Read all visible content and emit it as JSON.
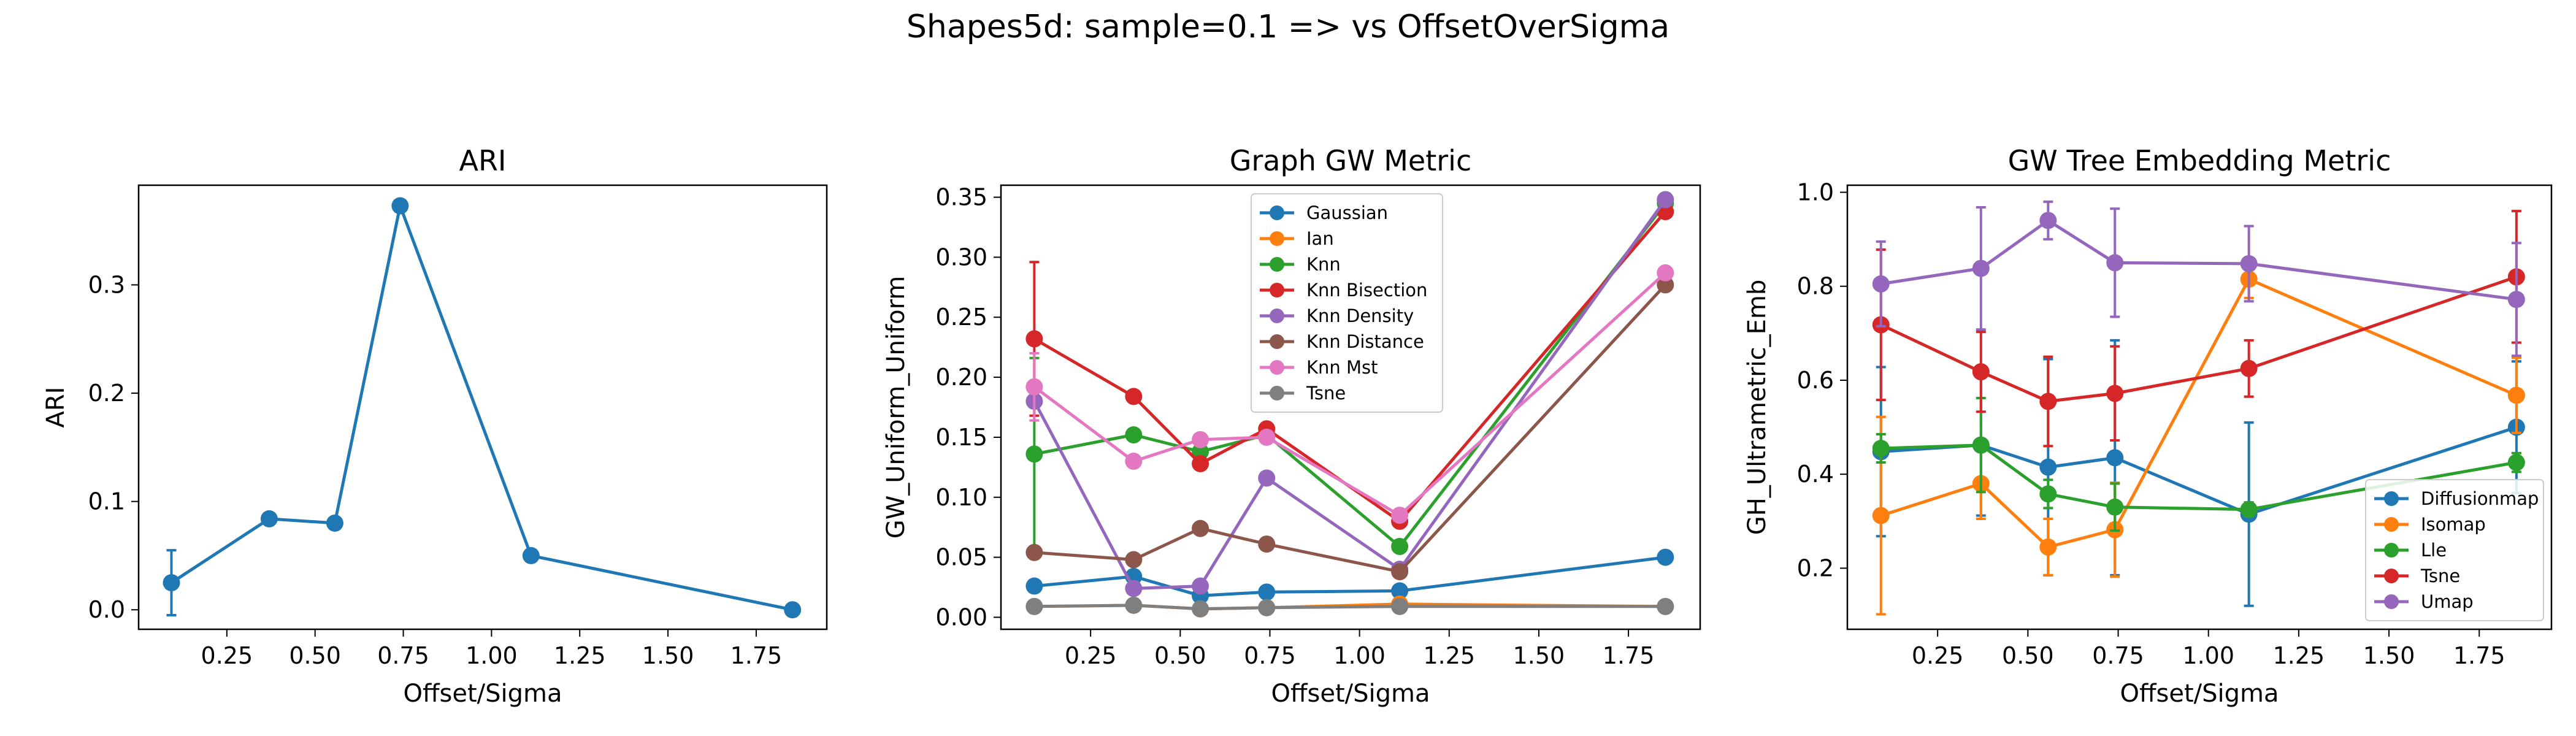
{
  "figure": {
    "suptitle": "Shapes5d: sample=0.1 => vs OffsetOverSigma"
  },
  "chart_data": [
    {
      "type": "line",
      "title": "ARI",
      "xlabel": "Offset/Sigma",
      "ylabel": "ARI",
      "xlim": [
        0.0,
        1.95
      ],
      "ylim": [
        -0.018,
        0.392
      ],
      "xticks": [
        0.25,
        0.5,
        0.75,
        1.0,
        1.25,
        1.5,
        1.75
      ],
      "xtick_labels": [
        "0.25",
        "0.50",
        "0.75",
        "1.00",
        "1.25",
        "1.50",
        "1.75"
      ],
      "yticks": [
        0.0,
        0.1,
        0.2,
        0.3
      ],
      "ytick_labels": [
        "0.0",
        "0.1",
        "0.2",
        "0.3"
      ],
      "legend": null,
      "series": [
        {
          "color": "#1f77b4",
          "x": [
            0.093,
            0.37,
            0.556,
            0.741,
            1.112,
            1.853
          ],
          "y": [
            0.025,
            0.084,
            0.08,
            0.373,
            0.05,
            0.0
          ],
          "err": [
            0.03,
            0,
            0,
            0,
            0,
            0
          ]
        }
      ]
    },
    {
      "type": "line",
      "title": "Graph GW Metric",
      "xlabel": "Offset/Sigma",
      "ylabel": "GW_Uniform_Uniform",
      "xlim": [
        0.0,
        1.95
      ],
      "ylim": [
        -0.01,
        0.36
      ],
      "xticks": [
        0.25,
        0.5,
        0.75,
        1.0,
        1.25,
        1.5,
        1.75
      ],
      "xtick_labels": [
        "0.25",
        "0.50",
        "0.75",
        "1.00",
        "1.25",
        "1.50",
        "1.75"
      ],
      "yticks": [
        0.0,
        0.05,
        0.1,
        0.15,
        0.2,
        0.25,
        0.3,
        0.35
      ],
      "ytick_labels": [
        "0.00",
        "0.05",
        "0.10",
        "0.15",
        "0.20",
        "0.25",
        "0.30",
        "0.35"
      ],
      "legend": "upper-center",
      "series": [
        {
          "name": "Gaussian",
          "color": "#1f77b4",
          "x": [
            0.093,
            0.37,
            0.556,
            0.741,
            1.112,
            1.853
          ],
          "y": [
            0.026,
            0.034,
            0.018,
            0.021,
            0.022,
            0.05
          ],
          "err": [
            0,
            0,
            0,
            0,
            0,
            0
          ]
        },
        {
          "name": "Ian",
          "color": "#ff7f0e",
          "x": [
            0.093,
            0.37,
            0.556,
            0.741,
            1.112,
            1.853
          ],
          "y": [
            0.009,
            0.01,
            0.007,
            0.008,
            0.011,
            0.009
          ],
          "err": [
            0,
            0,
            0,
            0,
            0,
            0
          ]
        },
        {
          "name": "Knn",
          "color": "#2ca02c",
          "x": [
            0.093,
            0.37,
            0.556,
            0.741,
            1.112,
            1.853
          ],
          "y": [
            0.136,
            0.152,
            0.138,
            0.152,
            0.059,
            0.345
          ],
          "err": [
            0.08,
            0,
            0,
            0,
            0,
            0
          ]
        },
        {
          "name": "Knn Bisection",
          "color": "#d62728",
          "x": [
            0.093,
            0.37,
            0.556,
            0.741,
            1.112,
            1.853
          ],
          "y": [
            0.232,
            0.184,
            0.128,
            0.157,
            0.08,
            0.338
          ],
          "err": [
            0.064,
            0,
            0,
            0,
            0,
            0
          ]
        },
        {
          "name": "Knn Density",
          "color": "#9467bd",
          "x": [
            0.093,
            0.37,
            0.556,
            0.741,
            1.112,
            1.853
          ],
          "y": [
            0.18,
            0.024,
            0.026,
            0.116,
            0.04,
            0.348
          ],
          "err": [
            0,
            0,
            0,
            0,
            0,
            0
          ]
        },
        {
          "name": "Knn Distance",
          "color": "#8c564b",
          "x": [
            0.093,
            0.37,
            0.556,
            0.741,
            1.112,
            1.853
          ],
          "y": [
            0.054,
            0.048,
            0.074,
            0.061,
            0.038,
            0.277
          ],
          "err": [
            0,
            0,
            0,
            0,
            0,
            0
          ]
        },
        {
          "name": "Knn Mst",
          "color": "#e377c2",
          "x": [
            0.093,
            0.37,
            0.556,
            0.741,
            1.112,
            1.853
          ],
          "y": [
            0.192,
            0.13,
            0.148,
            0.15,
            0.085,
            0.287
          ],
          "err": [
            0.028,
            0,
            0,
            0,
            0,
            0
          ]
        },
        {
          "name": "Tsne",
          "color": "#7f7f7f",
          "x": [
            0.093,
            0.37,
            0.556,
            0.741,
            1.112,
            1.853
          ],
          "y": [
            0.009,
            0.01,
            0.007,
            0.008,
            0.009,
            0.009
          ],
          "err": [
            0,
            0,
            0,
            0,
            0,
            0
          ]
        }
      ]
    },
    {
      "type": "line",
      "title": "GW Tree Embedding Metric",
      "xlabel": "Offset/Sigma",
      "ylabel": "GH_Ultrametric_Emb",
      "xlim": [
        0.0,
        1.95
      ],
      "ylim": [
        0.07,
        1.015
      ],
      "xticks": [
        0.25,
        0.5,
        0.75,
        1.0,
        1.25,
        1.5,
        1.75
      ],
      "xtick_labels": [
        "0.25",
        "0.50",
        "0.75",
        "1.00",
        "1.25",
        "1.50",
        "1.75"
      ],
      "yticks": [
        0.2,
        0.4,
        0.6,
        0.8,
        1.0
      ],
      "ytick_labels": [
        "0.2",
        "0.4",
        "0.6",
        "0.8",
        "1.0"
      ],
      "legend": "lower-right",
      "series": [
        {
          "name": "Diffusionmap",
          "color": "#1f77b4",
          "x": [
            0.093,
            0.37,
            0.556,
            0.741,
            1.112,
            1.853
          ],
          "y": [
            0.448,
            0.462,
            0.415,
            0.435,
            0.315,
            0.5
          ],
          "err": [
            0.18,
            0.15,
            0.23,
            0.25,
            0.195,
            0.14
          ]
        },
        {
          "name": "Isomap",
          "color": "#ff7f0e",
          "x": [
            0.093,
            0.37,
            0.556,
            0.741,
            1.112,
            1.853
          ],
          "y": [
            0.312,
            0.38,
            0.245,
            0.282,
            0.815,
            0.568
          ],
          "err": [
            0.21,
            0.075,
            0.06,
            0.1,
            0.04,
            0.08
          ]
        },
        {
          "name": "Lle",
          "color": "#2ca02c",
          "x": [
            0.093,
            0.37,
            0.556,
            0.741,
            1.112,
            1.853
          ],
          "y": [
            0.455,
            0.462,
            0.358,
            0.33,
            0.325,
            0.425
          ],
          "err": [
            0.03,
            0.1,
            0.03,
            0.05,
            0.015,
            0.02
          ]
        },
        {
          "name": "Tsne",
          "color": "#d62728",
          "x": [
            0.093,
            0.37,
            0.556,
            0.741,
            1.112,
            1.853
          ],
          "y": [
            0.718,
            0.618,
            0.555,
            0.572,
            0.625,
            0.82
          ],
          "err": [
            0.16,
            0.085,
            0.095,
            0.1,
            0.06,
            0.14
          ]
        },
        {
          "name": "Umap",
          "color": "#9467bd",
          "x": [
            0.093,
            0.37,
            0.556,
            0.741,
            1.112,
            1.853
          ],
          "y": [
            0.805,
            0.838,
            0.94,
            0.85,
            0.848,
            0.772
          ],
          "err": [
            0.09,
            0.13,
            0.04,
            0.115,
            0.08,
            0.12
          ]
        }
      ]
    }
  ]
}
